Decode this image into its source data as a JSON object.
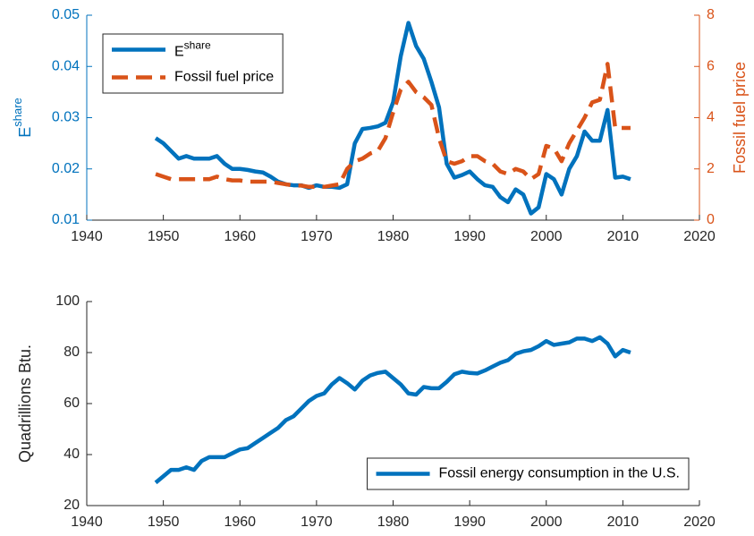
{
  "chart_data": [
    {
      "type": "line",
      "ylabel": "E",
      "ylabel_sup": "share",
      "y2label": "Fossil fuel price",
      "x": [
        1949,
        1950,
        1951,
        1952,
        1953,
        1954,
        1955,
        1956,
        1957,
        1958,
        1959,
        1960,
        1961,
        1962,
        1963,
        1964,
        1965,
        1966,
        1967,
        1968,
        1969,
        1970,
        1971,
        1972,
        1973,
        1974,
        1975,
        1976,
        1977,
        1978,
        1979,
        1980,
        1981,
        1982,
        1983,
        1984,
        1985,
        1986,
        1987,
        1988,
        1989,
        1990,
        1991,
        1992,
        1993,
        1994,
        1995,
        1996,
        1997,
        1998,
        1999,
        2000,
        2001,
        2002,
        2003,
        2004,
        2005,
        2006,
        2007,
        2008,
        2009,
        2010,
        2011
      ],
      "xlim": [
        1940,
        2020
      ],
      "xticks": [
        1940,
        1950,
        1960,
        1970,
        1980,
        1990,
        2000,
        2010,
        2020
      ],
      "ylim": [
        0.01,
        0.05
      ],
      "yticks": [
        0.01,
        0.02,
        0.03,
        0.04,
        0.05
      ],
      "y2lim": [
        0,
        8
      ],
      "y2ticks": [
        0,
        2,
        4,
        6,
        8
      ],
      "legend": "upper left",
      "ycolor": "#0072bd",
      "y2color": "#d95319",
      "series": [
        {
          "name": "E",
          "name_sup": "share",
          "color": "#0072bd",
          "dashed": false,
          "values": [
            0.026,
            0.025,
            0.0235,
            0.022,
            0.0225,
            0.022,
            0.022,
            0.022,
            0.0225,
            0.021,
            0.02,
            0.02,
            0.0198,
            0.0195,
            0.0193,
            0.0185,
            0.0175,
            0.017,
            0.0168,
            0.0168,
            0.0163,
            0.0168,
            0.0165,
            0.0165,
            0.0163,
            0.017,
            0.025,
            0.0278,
            0.028,
            0.0283,
            0.029,
            0.033,
            0.042,
            0.0485,
            0.044,
            0.0415,
            0.037,
            0.032,
            0.021,
            0.0183,
            0.0188,
            0.0195,
            0.018,
            0.0168,
            0.0165,
            0.0145,
            0.0135,
            0.016,
            0.015,
            0.0113,
            0.0125,
            0.019,
            0.018,
            0.015,
            0.02,
            0.0225,
            0.0273,
            0.0255,
            0.0255,
            0.0315,
            0.0183,
            0.0185,
            0.018
          ]
        },
        {
          "name": "Fossil fuel price",
          "color": "#d95319",
          "dashed": true,
          "axis": "y2",
          "values": [
            1.8,
            1.7,
            1.6,
            1.6,
            1.6,
            1.6,
            1.6,
            1.6,
            1.7,
            1.6,
            1.55,
            1.55,
            1.5,
            1.5,
            1.5,
            1.5,
            1.45,
            1.4,
            1.35,
            1.35,
            1.3,
            1.3,
            1.3,
            1.35,
            1.4,
            2.0,
            2.3,
            2.4,
            2.6,
            2.7,
            3.2,
            4.2,
            5.1,
            5.4,
            5.0,
            4.8,
            4.5,
            3.2,
            2.3,
            2.2,
            2.3,
            2.5,
            2.5,
            2.3,
            2.2,
            1.9,
            1.8,
            2.0,
            1.9,
            1.6,
            1.8,
            2.9,
            2.8,
            2.3,
            3.0,
            3.5,
            4.0,
            4.6,
            4.7,
            6.1,
            3.6,
            3.6,
            3.6
          ]
        }
      ]
    },
    {
      "type": "line",
      "ylabel": "Quadrillions Btu.",
      "x": [
        1949,
        1950,
        1951,
        1952,
        1953,
        1954,
        1955,
        1956,
        1957,
        1958,
        1959,
        1960,
        1961,
        1962,
        1963,
        1964,
        1965,
        1966,
        1967,
        1968,
        1969,
        1970,
        1971,
        1972,
        1973,
        1974,
        1975,
        1976,
        1977,
        1978,
        1979,
        1980,
        1981,
        1982,
        1983,
        1984,
        1985,
        1986,
        1987,
        1988,
        1989,
        1990,
        1991,
        1992,
        1993,
        1994,
        1995,
        1996,
        1997,
        1998,
        1999,
        2000,
        2001,
        2002,
        2003,
        2004,
        2005,
        2006,
        2007,
        2008,
        2009,
        2010,
        2011
      ],
      "xlim": [
        1940,
        2020
      ],
      "xticks": [
        1940,
        1950,
        1960,
        1970,
        1980,
        1990,
        2000,
        2010,
        2020
      ],
      "ylim": [
        20,
        100
      ],
      "yticks": [
        20,
        40,
        60,
        80,
        100
      ],
      "legend": "lower right",
      "ycolor": "#262626",
      "series": [
        {
          "name": "Fossil energy consumption in the U.S.",
          "color": "#0072bd",
          "dashed": false,
          "values": [
            29,
            31.5,
            34,
            34,
            35,
            34,
            37.5,
            39,
            39,
            39,
            40.5,
            42,
            42.5,
            44.5,
            46.5,
            48.5,
            50.5,
            53.5,
            55,
            58,
            61,
            63,
            64,
            67.5,
            70,
            68,
            65.5,
            69,
            71,
            72,
            72.5,
            70,
            67.5,
            64,
            63.5,
            66.5,
            66,
            66,
            68.5,
            71.5,
            72.5,
            72,
            71.8,
            73,
            74.5,
            76,
            77,
            79.5,
            80.5,
            81,
            82.5,
            84.5,
            83,
            83.5,
            84,
            85.5,
            85.5,
            84.5,
            86,
            83.5,
            78.5,
            81,
            80
          ]
        }
      ]
    }
  ]
}
